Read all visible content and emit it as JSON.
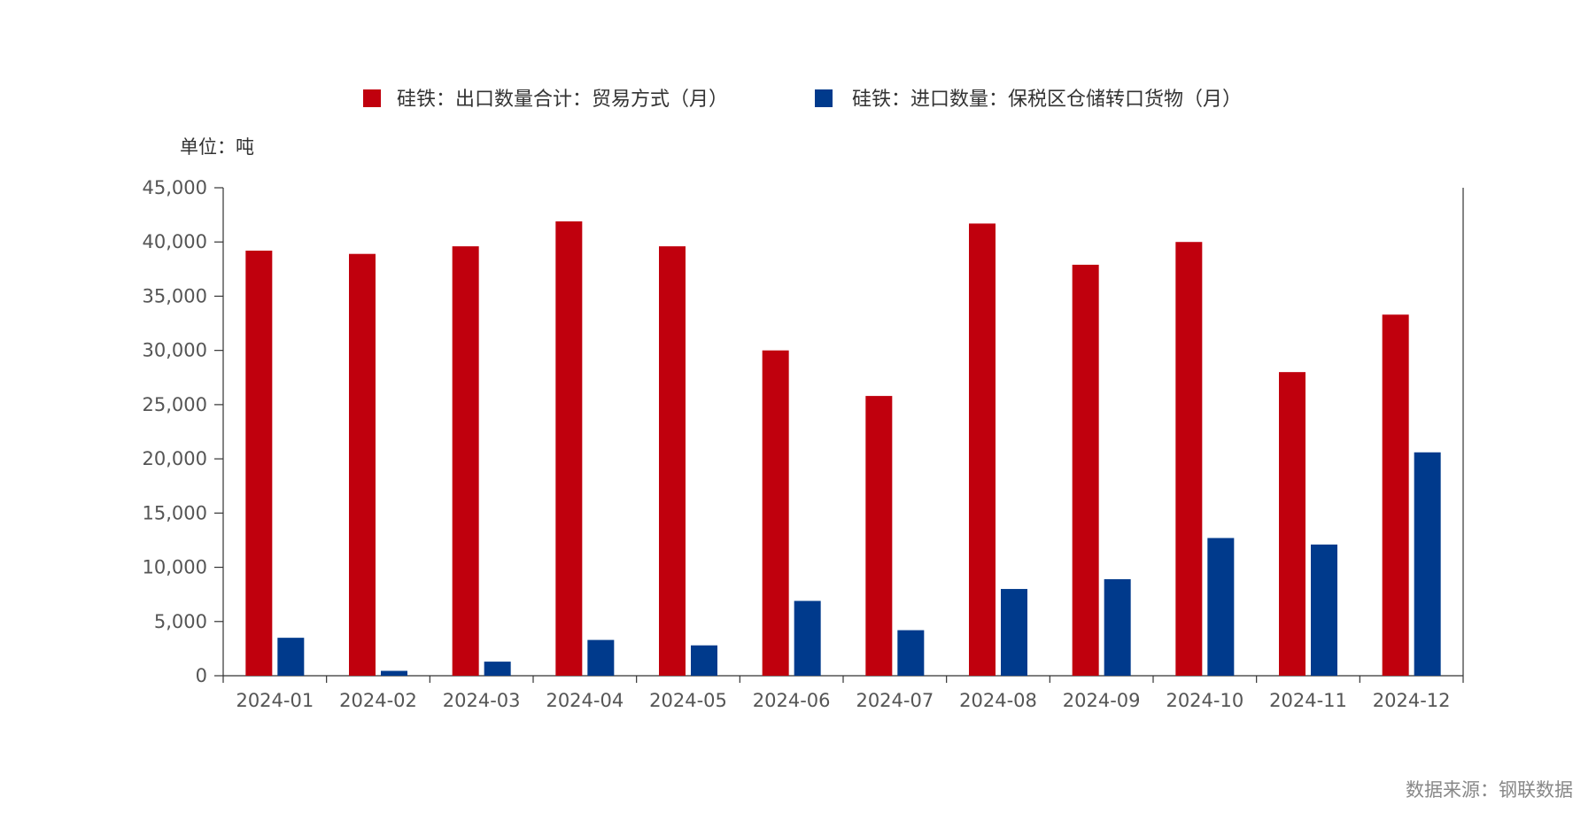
{
  "chart_data": {
    "type": "bar",
    "unit_label": "单位：吨",
    "source": "数据来源：钢联数据",
    "categories": [
      "2024-01",
      "2024-02",
      "2024-03",
      "2024-04",
      "2024-05",
      "2024-06",
      "2024-07",
      "2024-08",
      "2024-09",
      "2024-10",
      "2024-11",
      "2024-12"
    ],
    "series": [
      {
        "name": "硅铁：出口数量合计：贸易方式（月）",
        "color": "#c0000d",
        "values": [
          39200,
          38900,
          39600,
          41900,
          39600,
          30000,
          25800,
          41700,
          37900,
          40000,
          28000,
          33300
        ]
      },
      {
        "name": "硅铁：进口数量：保税区仓储转口货物（月）",
        "color": "#003a8c",
        "values": [
          3500,
          450,
          1300,
          3300,
          2800,
          6900,
          4200,
          8000,
          8900,
          12700,
          12100,
          20600
        ]
      }
    ],
    "ylim": [
      0,
      45000
    ],
    "yticks": [
      "0",
      "5,000",
      "10,000",
      "15,000",
      "20,000",
      "25,000",
      "30,000",
      "35,000",
      "40,000",
      "45,000"
    ],
    "grid": false,
    "legend_position": "top-center"
  }
}
